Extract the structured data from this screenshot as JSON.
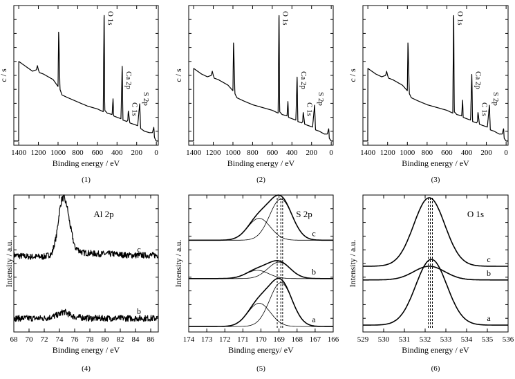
{
  "chart_data": [
    {
      "id": 1,
      "type": "line",
      "caption": "(1)",
      "xlabel": "Binding energy / eV",
      "ylabel": "c / s",
      "xlim": [
        1450,
        -20
      ],
      "xticks": [
        1400,
        1200,
        1000,
        800,
        600,
        400,
        200,
        0
      ],
      "annotations": [
        {
          "text": "O 1s",
          "x": 531
        },
        {
          "text": "Ca 2p",
          "x": 347
        },
        {
          "text": "C 1s",
          "x": 285
        },
        {
          "text": "S 2p",
          "x": 169
        }
      ],
      "series": [
        {
          "x": [
            1400,
            1320,
            1260,
            1220,
            1210,
            1200,
            1190,
            1150,
            1050,
            1000,
            994,
            980,
            960,
            900,
            800,
            700,
            600,
            540,
            531,
            525,
            500,
            450,
            440,
            435,
            400,
            360,
            347,
            340,
            300,
            290,
            285,
            270,
            230,
            190,
            169,
            160,
            120,
            70,
            40,
            25,
            20,
            10,
            0
          ],
          "y": [
            0.6,
            0.56,
            0.53,
            0.54,
            0.57,
            0.54,
            0.52,
            0.51,
            0.47,
            0.42,
            0.83,
            0.4,
            0.36,
            0.34,
            0.31,
            0.28,
            0.26,
            0.24,
            1.0,
            0.25,
            0.23,
            0.22,
            0.34,
            0.21,
            0.2,
            0.19,
            0.58,
            0.18,
            0.17,
            0.18,
            0.25,
            0.16,
            0.15,
            0.14,
            0.3,
            0.12,
            0.1,
            0.09,
            0.09,
            0.13,
            0.06,
            0.04,
            0.03
          ]
        }
      ]
    },
    {
      "id": 2,
      "type": "line",
      "caption": "(2)",
      "xlabel": "Binding energy / eV",
      "ylabel": "c / s",
      "xlim": [
        1450,
        -20
      ],
      "xticks": [
        1400,
        1200,
        1000,
        800,
        600,
        400,
        200,
        0
      ],
      "annotations": [
        {
          "text": "O 1s",
          "x": 531
        },
        {
          "text": "Ca 2p",
          "x": 347
        },
        {
          "text": "C 1s",
          "x": 285
        },
        {
          "text": "S 2p",
          "x": 169
        }
      ],
      "series": [
        {
          "x": [
            1400,
            1320,
            1260,
            1220,
            1210,
            1200,
            1190,
            1150,
            1050,
            1000,
            994,
            980,
            960,
            900,
            800,
            700,
            600,
            540,
            531,
            525,
            500,
            450,
            440,
            435,
            400,
            360,
            347,
            340,
            300,
            290,
            285,
            270,
            230,
            190,
            169,
            160,
            120,
            70,
            40,
            25,
            20,
            10,
            0
          ],
          "y": [
            0.55,
            0.51,
            0.49,
            0.5,
            0.53,
            0.5,
            0.48,
            0.47,
            0.43,
            0.39,
            0.75,
            0.37,
            0.34,
            0.32,
            0.29,
            0.27,
            0.25,
            0.23,
            1.0,
            0.24,
            0.22,
            0.21,
            0.32,
            0.2,
            0.19,
            0.18,
            0.5,
            0.17,
            0.16,
            0.17,
            0.24,
            0.15,
            0.14,
            0.13,
            0.29,
            0.11,
            0.1,
            0.08,
            0.08,
            0.12,
            0.05,
            0.04,
            0.03
          ]
        }
      ]
    },
    {
      "id": 3,
      "type": "line",
      "caption": "(3)",
      "xlabel": "Binding energy / eV",
      "ylabel": "c / s",
      "xlim": [
        1450,
        -20
      ],
      "xticks": [
        1400,
        1200,
        1000,
        800,
        600,
        400,
        200,
        0
      ],
      "annotations": [
        {
          "text": "O 1s",
          "x": 531
        },
        {
          "text": "Ca 2p",
          "x": 347
        },
        {
          "text": "C 1s",
          "x": 285
        },
        {
          "text": "S 2p",
          "x": 169
        }
      ],
      "series": [
        {
          "x": [
            1400,
            1320,
            1260,
            1220,
            1210,
            1200,
            1190,
            1150,
            1050,
            1000,
            994,
            980,
            960,
            900,
            800,
            700,
            600,
            540,
            531,
            525,
            500,
            450,
            440,
            435,
            400,
            360,
            347,
            340,
            300,
            290,
            285,
            270,
            230,
            190,
            169,
            160,
            120,
            70,
            40,
            25,
            20,
            10,
            0
          ],
          "y": [
            0.55,
            0.51,
            0.49,
            0.5,
            0.53,
            0.5,
            0.48,
            0.47,
            0.43,
            0.39,
            0.75,
            0.37,
            0.34,
            0.32,
            0.29,
            0.27,
            0.25,
            0.23,
            1.0,
            0.24,
            0.22,
            0.21,
            0.33,
            0.2,
            0.19,
            0.18,
            0.52,
            0.17,
            0.16,
            0.17,
            0.24,
            0.15,
            0.14,
            0.13,
            0.29,
            0.11,
            0.1,
            0.08,
            0.08,
            0.12,
            0.05,
            0.04,
            0.03
          ]
        }
      ]
    },
    {
      "id": 4,
      "type": "line",
      "caption": "(4)",
      "xlabel": "Binding energy / eV",
      "ylabel": "Intensity / a.u.",
      "xlim": [
        68,
        87
      ],
      "xticks": [
        68,
        70,
        72,
        74,
        76,
        78,
        80,
        82,
        84,
        86
      ],
      "title": "Al 2p",
      "series": [
        {
          "name": "c",
          "noisy": true,
          "x": [
            68,
            70,
            72,
            73,
            73.6,
            74,
            74.3,
            74.6,
            75,
            75.4,
            76,
            77,
            79,
            81,
            83,
            85,
            87
          ],
          "y": [
            0.56,
            0.55,
            0.55,
            0.57,
            0.7,
            0.88,
            0.97,
            0.98,
            0.92,
            0.78,
            0.62,
            0.58,
            0.57,
            0.57,
            0.56,
            0.56,
            0.56
          ]
        },
        {
          "name": "b",
          "noisy": true,
          "x": [
            68,
            70,
            72,
            73,
            74,
            74.6,
            75.2,
            76,
            78,
            80,
            82,
            84,
            87
          ],
          "y": [
            0.1,
            0.1,
            0.1,
            0.11,
            0.13,
            0.15,
            0.13,
            0.11,
            0.1,
            0.1,
            0.1,
            0.1,
            0.1
          ]
        }
      ]
    },
    {
      "id": 5,
      "type": "line",
      "caption": "(5)",
      "xlabel": "Binding energy/ eV",
      "ylabel": "Intensity / a.u.",
      "xlim": [
        174,
        166
      ],
      "xticks": [
        174,
        173,
        172,
        171,
        170,
        169,
        168,
        167,
        166
      ],
      "title": "S 2p",
      "vlines": [
        169.1,
        168.9,
        168.8
      ],
      "series": [
        {
          "name": "c",
          "baseline": 0.67,
          "peaks": [
            {
              "center": 168.9,
              "height": 0.3,
              "sigma": 0.62
            },
            {
              "center": 170.1,
              "height": 0.16,
              "sigma": 0.62
            }
          ]
        },
        {
          "name": "b",
          "baseline": 0.39,
          "peaks": [
            {
              "center": 169.0,
              "height": 0.12,
              "sigma": 0.62
            },
            {
              "center": 170.2,
              "height": 0.06,
              "sigma": 0.62
            }
          ]
        },
        {
          "name": "a",
          "baseline": 0.04,
          "peaks": [
            {
              "center": 168.9,
              "height": 0.32,
              "sigma": 0.62
            },
            {
              "center": 170.1,
              "height": 0.17,
              "sigma": 0.62
            }
          ]
        }
      ]
    },
    {
      "id": 6,
      "type": "line",
      "caption": "(6)",
      "xlabel": "Binding energy / eV",
      "ylabel": "Intensity / a.u.",
      "xlim": [
        529,
        536
      ],
      "xticks": [
        529,
        530,
        531,
        532,
        533,
        534,
        535,
        536
      ],
      "title": "O 1s",
      "vlines": [
        532.15,
        532.25,
        532.35
      ],
      "series": [
        {
          "name": "c",
          "baseline": 0.48,
          "peaks": [
            {
              "center": 532.2,
              "height": 0.5,
              "sigma": 0.75
            }
          ]
        },
        {
          "name": "b",
          "baseline": 0.38,
          "peaks": [
            {
              "center": 532.2,
              "height": 0.1,
              "sigma": 0.75
            }
          ]
        },
        {
          "name": "a",
          "baseline": 0.05,
          "peaks": [
            {
              "center": 532.3,
              "height": 0.48,
              "sigma": 0.75
            }
          ]
        }
      ]
    }
  ]
}
